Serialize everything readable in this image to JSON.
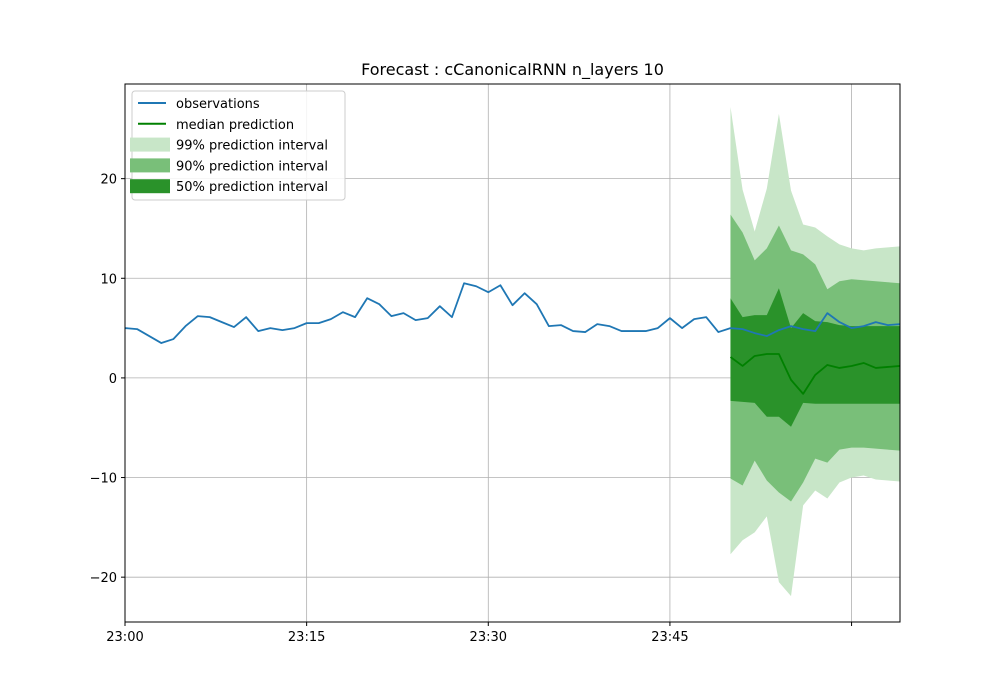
{
  "chart_data": {
    "type": "line",
    "title": "Forecast : cCanonicalRNN n_layers 10",
    "xlabel": "",
    "ylabel": "",
    "x_start_minute": 0,
    "x_end_minute": 64,
    "xlim_labels": [
      "23:00",
      "23:15",
      "23:30",
      "23:45"
    ],
    "x_ticks": [
      0,
      15,
      30,
      45,
      60
    ],
    "x_tick_labels": [
      "23:00",
      "23:15",
      "23:30",
      "23:45",
      ""
    ],
    "ylim": [
      -24.5,
      29.5
    ],
    "y_ticks": [
      -20,
      -10,
      0,
      10,
      20
    ],
    "y_tick_labels": [
      "−20",
      "−10",
      "0",
      "10",
      "20"
    ],
    "grid": true,
    "legend_placement": "top-left",
    "colors": {
      "observations": "#1f77b4",
      "median": "#008000",
      "pi99": "#c8e6c8",
      "pi90": "#79bf79",
      "pi50": "#2a922a"
    },
    "legend": [
      {
        "label": "observations",
        "kind": "line",
        "key": "observations"
      },
      {
        "label": "median prediction",
        "kind": "line",
        "key": "median"
      },
      {
        "label": "99% prediction interval",
        "kind": "patch",
        "key": "pi99"
      },
      {
        "label": "90% prediction interval",
        "kind": "patch",
        "key": "pi90"
      },
      {
        "label": "50% prediction interval",
        "kind": "patch",
        "key": "pi50"
      }
    ],
    "series": [
      {
        "name": "observations",
        "x": [
          0,
          1,
          2,
          3,
          4,
          5,
          6,
          7,
          8,
          9,
          10,
          11,
          12,
          13,
          14,
          15,
          16,
          17,
          18,
          19,
          20,
          21,
          22,
          23,
          24,
          25,
          26,
          27,
          28,
          29,
          30,
          31,
          32,
          33,
          34,
          35,
          36,
          37,
          38,
          39,
          40,
          41,
          42,
          43,
          44,
          45,
          46,
          47,
          48,
          49,
          50,
          51,
          52,
          53,
          54,
          55,
          56,
          57,
          58,
          59,
          60,
          61,
          62,
          63,
          64
        ],
        "values": [
          5.0,
          4.9,
          4.2,
          3.5,
          3.9,
          5.2,
          6.2,
          6.1,
          5.6,
          5.1,
          6.1,
          4.7,
          5.0,
          4.8,
          5.0,
          5.5,
          5.5,
          5.9,
          6.6,
          6.1,
          8.0,
          7.4,
          6.2,
          6.5,
          5.8,
          6.0,
          7.2,
          6.1,
          9.5,
          9.2,
          8.6,
          9.3,
          7.3,
          8.5,
          7.4,
          5.2,
          5.3,
          4.7,
          4.6,
          5.4,
          5.2,
          4.7,
          4.7,
          4.7,
          5.0,
          6.0,
          5.0,
          5.9,
          6.1,
          4.6,
          5.0,
          4.9,
          4.5,
          4.2,
          4.8,
          5.2,
          4.9,
          4.7,
          6.5,
          5.6,
          5.0,
          5.2,
          5.6,
          5.3,
          5.4
        ]
      },
      {
        "name": "median prediction",
        "x": [
          50,
          51,
          52,
          53,
          54,
          55,
          56,
          57,
          58,
          59,
          60,
          61,
          62,
          63,
          64
        ],
        "values": [
          2.1,
          1.2,
          2.2,
          2.4,
          2.4,
          -0.2,
          -1.6,
          0.3,
          1.3,
          1.0,
          1.2,
          1.5,
          1.0,
          1.1,
          1.2
        ]
      }
    ],
    "intervals": [
      {
        "name": "99% prediction interval",
        "x": [
          50,
          51,
          52,
          53,
          54,
          55,
          56,
          57,
          58,
          59,
          60,
          61,
          62,
          63,
          64
        ],
        "lower": [
          -17.7,
          -16.3,
          -15.5,
          -13.9,
          -20.5,
          -21.9,
          -12.8,
          -11.3,
          -12.1,
          -10.5,
          -10.0,
          -9.8,
          -10.2,
          -10.3,
          -10.4
        ],
        "upper": [
          27.2,
          18.9,
          14.7,
          19.0,
          26.5,
          18.8,
          15.4,
          15.1,
          14.2,
          13.4,
          13.0,
          12.8,
          13.0,
          13.1,
          13.2
        ]
      },
      {
        "name": "90% prediction interval",
        "x": [
          50,
          51,
          52,
          53,
          54,
          55,
          56,
          57,
          58,
          59,
          60,
          61,
          62,
          63,
          64
        ],
        "lower": [
          -10.1,
          -10.8,
          -8.3,
          -10.3,
          -11.5,
          -12.4,
          -10.5,
          -8.1,
          -8.5,
          -7.2,
          -7.0,
          -7.0,
          -7.1,
          -7.2,
          -7.3
        ],
        "upper": [
          16.4,
          14.6,
          11.8,
          13.0,
          15.3,
          12.8,
          12.4,
          11.4,
          8.9,
          9.7,
          9.9,
          9.8,
          9.7,
          9.6,
          9.5
        ]
      },
      {
        "name": "50% prediction interval",
        "x": [
          50,
          51,
          52,
          53,
          54,
          55,
          56,
          57,
          58,
          59,
          60,
          61,
          62,
          63,
          64
        ],
        "lower": [
          -2.3,
          -2.4,
          -2.5,
          -3.9,
          -3.9,
          -4.9,
          -2.5,
          -2.6,
          -2.6,
          -2.6,
          -2.6,
          -2.6,
          -2.6,
          -2.6,
          -2.6
        ],
        "upper": [
          8.0,
          6.1,
          6.3,
          6.3,
          9.0,
          5.0,
          6.5,
          5.7,
          5.6,
          5.3,
          5.2,
          5.2,
          5.2,
          5.2,
          5.2
        ]
      }
    ]
  }
}
